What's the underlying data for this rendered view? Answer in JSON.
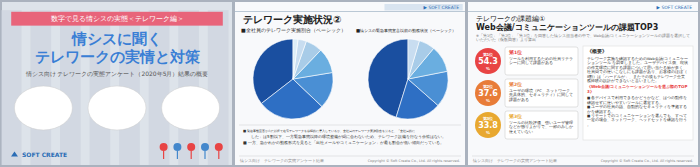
{
  "chart_data": [
    {
      "type": "text",
      "title": "情シスに聞く",
      "subtitle": "情シス向け テレワークの実態アンケート（2020年5月）結果の概要",
      "annotations": [
        "数字で見る情シスの実態＜テレワーク編＞",
        "テレワークの実情と対策",
        "SOFT CREATE"
      ]
    },
    {
      "type": "pie",
      "title": "■全社員のテレワーク実施割合（ベーシック）",
      "values": [
        35.5,
        27.4,
        14.7,
        10.2,
        6.8,
        3.4,
        2.0
      ],
      "colors": [
        "#1a4fa0",
        "#2e6fc4",
        "#4a8fd4",
        "#6aaee0",
        "#a8cce8",
        "#c8ddf0",
        "#ddeef8"
      ],
      "annotations": [
        "テレワーク実施状況②",
        "▶ SOFT CREATE",
        "■ 緊急事態宣言が出た以降で在宅テレワークを積極的に導入しているが、全社員のテレワーク実施割合を見ると、「全社員的に",
        "　　した」は5割以下、一方緊急事態以降の環境整備が間に合わないため、テレワーク設備を行なう余裕はない。",
        "■ 一方、急かれかの勤務形式を見ると「出社メールやコミュニケーション」が最も割合が低い傾向だっている。",
        "情シス向け　テレワークの実態アンケート結果",
        "Copyright © Soft Create Co., Ltd. All rights reserved."
      ]
    },
    {
      "type": "pie",
      "title": "■情シスの緊急事態宣言以前の勤務状況（ベーシック）",
      "values": [
        45.2,
        18.3,
        14.6,
        10.8,
        6.5,
        4.6
      ],
      "colors": [
        "#1a4fa0",
        "#2e6fc4",
        "#4a8fd4",
        "#6aaee0",
        "#a8cce8",
        "#c8ddf0"
      ]
    },
    {
      "type": "ranking",
      "title": "Web会議/コミュニケーションツールの課題TOP3",
      "subtitle": "※「第1位」「第2位」「第3位」を回答した情シス担当者の中で、Web会議/コミュニケーションツールの課題を選択していただいた（複数回答）より算出",
      "categories": [
        "第1位",
        "第2位",
        "第3位"
      ],
      "values": [
        54.3,
        37.6,
        33.8
      ],
      "colors": [
        "#e84444",
        "#e87c38",
        "#e8a830"
      ],
      "data_labels": true,
      "annotations": [
        "テレワークの課題編①",
        "▶ SOFT CREATE",
        "ツールを利用するための社員リテラシーに関して課題がある",
        "ユーザの環境（PC、ネットワーク、先具体的、セキュリティ）に関して課題がある",
        "ツールの比較評価、強いユーザ管理などが独りよがりで、一部のみしか使えていない",
        "%",
        "《概要》",
        "テレワーク実施を確認するためのWeb会議/コミュニケーションツール を調査しました。ユーザデバイス側、現状の作業環境に関する課題について思い当たる節が多く、社員間での使いこなしにも課題があり、お客様のほぼ（8割）は「ハードルが」、またその後もテレワーク全業務経験の設計ができないと言いました。",
        "《Web会議/コミュニケーションツールを選ぶ際のTOP3》",
        "■ 各デバイスで利用できるかどうかなど、はつの動作を確認せずに使いやすいツールに選定する。\n■ ユーザの社員の話、自動的なセキュリティを準拠するかを確認する。\n■ リモートでのコミュニケーションを選んでも、すべて一定の場合、ネットワーク、ヘッドセットを確認を行う。",
        "情シス向け　テレワークの実態アンケート結果",
        "Copyright © Soft Create Co., Ltd. All rights reserved."
      ]
    }
  ]
}
